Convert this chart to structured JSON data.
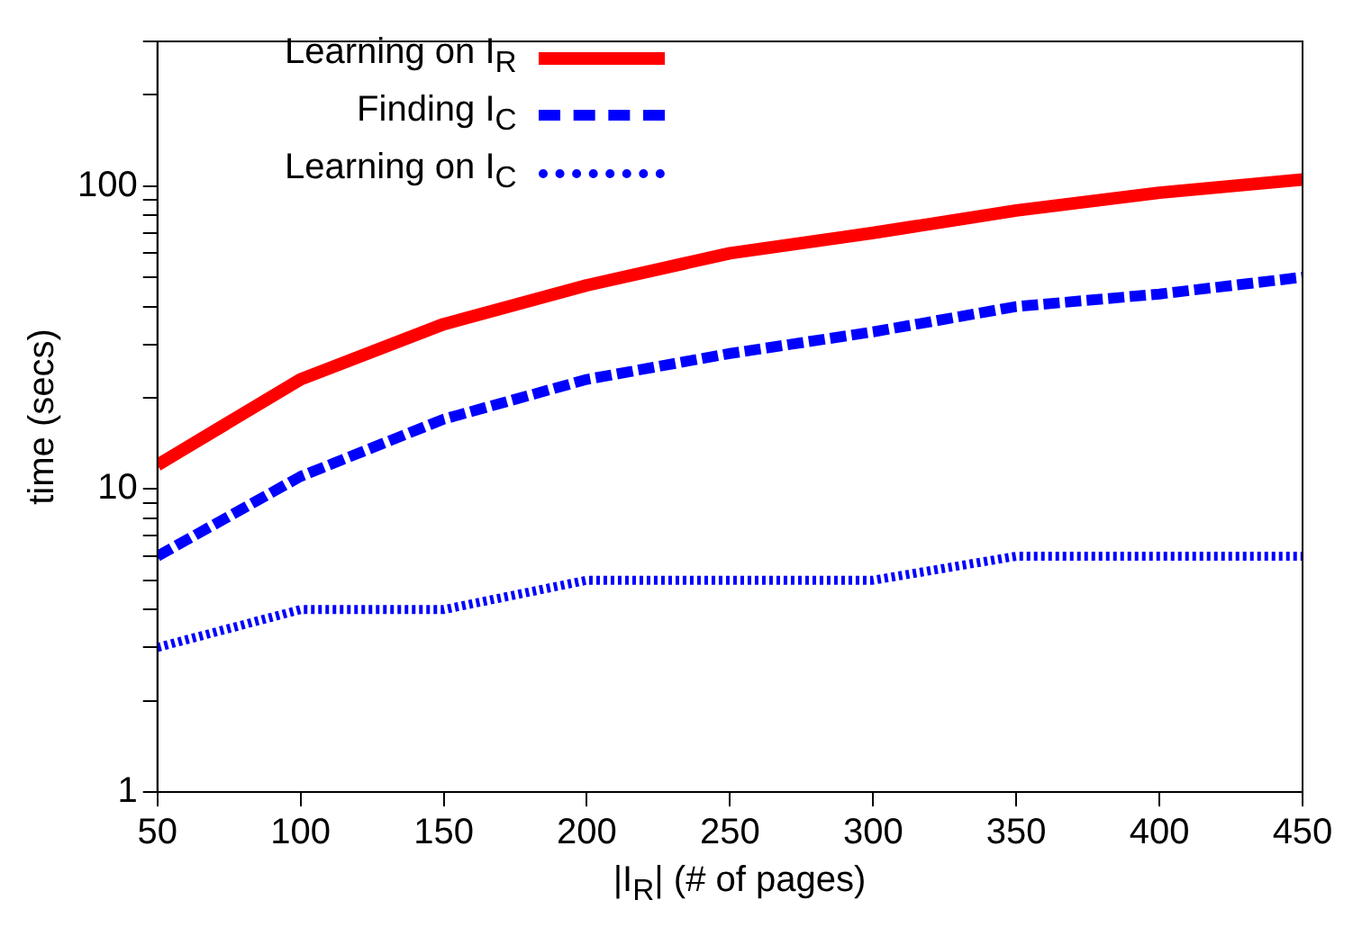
{
  "chart_data": {
    "type": "line",
    "xlabel": "|I$_{R}$| (# of pages)",
    "ylabel": "time (secs)",
    "x": [
      50,
      100,
      150,
      200,
      250,
      300,
      350,
      400,
      450
    ],
    "series": [
      {
        "name": "Learning on I$_{R}$",
        "color": "#ff0000",
        "line_style": "solid",
        "values": [
          12,
          23,
          35,
          47,
          60,
          70,
          83,
          95,
          105
        ]
      },
      {
        "name": "Finding I$_{C}$",
        "color": "#0000ff",
        "line_style": "dashed",
        "values": [
          6,
          11,
          17,
          23,
          28,
          33,
          40,
          44,
          50
        ]
      },
      {
        "name": "Learning on I$_{C}$",
        "color": "#0000ff",
        "line_style": "dotted",
        "values": [
          3,
          4,
          4,
          5,
          5,
          5,
          6,
          6,
          6
        ]
      }
    ],
    "log": "y",
    "xlim": [
      50,
      450
    ],
    "xticks": [
      50,
      100,
      150,
      200,
      250,
      300,
      350,
      400,
      450
    ],
    "ylim": [
      1,
      300
    ],
    "yticks": [
      1,
      {
        "value": 2,
        "label": null
      },
      {
        "value": 3,
        "label": null
      },
      {
        "value": 4,
        "label": null
      },
      {
        "value": 5,
        "label": null
      },
      {
        "value": 6,
        "label": null
      },
      {
        "value": 7,
        "label": null
      },
      {
        "value": 8,
        "label": null
      },
      {
        "value": 9,
        "label": null
      },
      10,
      {
        "value": 20,
        "label": null
      },
      {
        "value": 30,
        "label": null
      },
      {
        "value": 40,
        "label": null
      },
      {
        "value": 50,
        "label": null
      },
      {
        "value": 60,
        "label": null
      },
      {
        "value": 70,
        "label": null
      },
      {
        "value": 80,
        "label": null
      },
      {
        "value": 90,
        "label": null
      },
      100,
      {
        "value": 200,
        "label": null
      },
      {
        "value": 300,
        "label": null
      }
    ],
    "grid": false,
    "legend": "top left",
    "marker": "none"
  }
}
